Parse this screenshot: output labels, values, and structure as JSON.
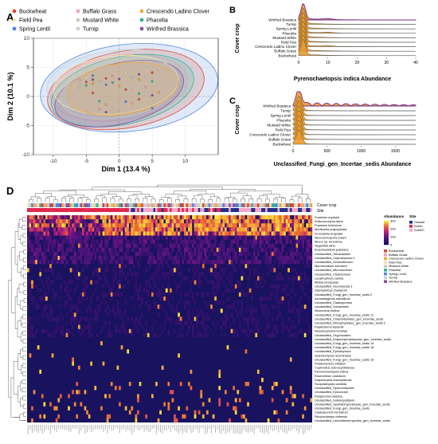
{
  "panels": {
    "a": "A",
    "b": "B",
    "c": "C",
    "d": "D"
  },
  "colors": {
    "Buckwheat": "#e0492f",
    "Buffalo Grass": "#f4a3b2",
    "Crescendo Ladino Clover": "#f0a93c",
    "Field Pea": "#f3e7b0",
    "Mustard White": "#c9c9b8",
    "Phacelia": "#2fb59a",
    "Spring Lentil": "#4f86e0",
    "Turnip": "#c8d0d6",
    "Winfred Brassica": "#8a4fa3",
    "site_Oswald": "#1f2f8a",
    "site_Kelvin": "#e0264d",
    "site_SoREC": "#f5a6c8",
    "ridge_fill": "#e89a2e",
    "ridge_top": "#7a2d8c"
  },
  "legend_a": [
    {
      "label": "Buckwheat",
      "key": "Buckwheat"
    },
    {
      "label": "Buffalo Grass",
      "key": "Buffalo Grass"
    },
    {
      "label": "Crescendo Ladino Clover",
      "key": "Crescendo Ladino Clover"
    },
    {
      "label": "Field Pea",
      "key": "Field Pea"
    },
    {
      "label": "Mustard White",
      "key": "Mustard White"
    },
    {
      "label": "Phacelia",
      "key": "Phacelia"
    },
    {
      "label": "Spring Lentil",
      "key": "Spring Lentil"
    },
    {
      "label": "Turnip",
      "key": "Turnip"
    },
    {
      "label": "Winfred Brassica",
      "key": "Winfred Brassica"
    }
  ],
  "chart_data": [
    {
      "type": "scatter",
      "panel": "A",
      "xlabel": "Dim 1 (13.4 %)",
      "ylabel": "Dim 2 (10.1 %)",
      "xlim": [
        -13,
        15
      ],
      "ylim": [
        -10,
        10
      ],
      "xticks": [
        "-10",
        "-5",
        "0",
        "5",
        "10"
      ],
      "yticks": [
        "-10",
        "-5",
        "0",
        "5",
        "10"
      ],
      "grid": true,
      "legend": "top",
      "ellipse_type": "confidence ellipses per cover crop",
      "series": [
        {
          "name": "Buckwheat",
          "points": [
            [
              -5,
              2.5
            ],
            [
              -2,
              3.1
            ],
            [
              1,
              1.2
            ],
            [
              5,
              4.1
            ],
            [
              3,
              -0.5
            ],
            [
              -4,
              0.6
            ]
          ]
        },
        {
          "name": "Buffalo Grass",
          "points": [
            [
              -6,
              2.8
            ],
            [
              -1,
              3.5
            ],
            [
              2,
              -1.2
            ],
            [
              -3,
              -2.1
            ],
            [
              4,
              1.6
            ]
          ]
        },
        {
          "name": "Crescendo Ladino Clover",
          "points": [
            [
              -4,
              2.2
            ],
            [
              0,
              1.8
            ],
            [
              3,
              2.9
            ],
            [
              -2,
              -1.4
            ],
            [
              6,
              0.7
            ]
          ]
        },
        {
          "name": "Field Pea",
          "points": [
            [
              -5,
              3.2
            ],
            [
              1,
              4.0
            ],
            [
              -2,
              0.9
            ],
            [
              4,
              -1.6
            ]
          ]
        },
        {
          "name": "Mustard White",
          "points": [
            [
              -3,
              2.7
            ],
            [
              2,
              3.3
            ],
            [
              -6,
              1.5
            ],
            [
              0,
              -2.4
            ]
          ]
        },
        {
          "name": "Phacelia",
          "points": [
            [
              -5,
              1.9
            ],
            [
              -1,
              2.4
            ],
            [
              3,
              0.5
            ],
            [
              5,
              2.6
            ],
            [
              -3,
              -0.8
            ]
          ]
        },
        {
          "name": "Spring Lentil",
          "points": [
            [
              -4,
              3.6
            ],
            [
              1,
              -0.9
            ],
            [
              -2,
              2.0
            ],
            [
              5,
              -2.0
            ]
          ]
        },
        {
          "name": "Turnip",
          "points": [
            [
              -6,
              2.1
            ],
            [
              2,
              1.5
            ],
            [
              -1,
              -1.8
            ],
            [
              4,
              3.4
            ]
          ]
        },
        {
          "name": "Winfred Brassica",
          "points": [
            [
              -4,
              2.9
            ],
            [
              0,
              3.0
            ],
            [
              3,
              3.8
            ],
            [
              -2,
              -2.7
            ],
            [
              5,
              0.2
            ]
          ]
        }
      ]
    },
    {
      "type": "area",
      "panel": "B",
      "xlabel": "Pyrenochaetopsis indica Abundance",
      "ylabel": "Cover crop",
      "xlim": [
        0,
        40
      ],
      "xticks": [
        "0",
        "10",
        "20",
        "30",
        "40"
      ],
      "categories": [
        "Winfred Brassica",
        "Turnip",
        "Spring Lentil",
        "Phacelia",
        "Mustard White",
        "Field Pea",
        "Crescendo Ladino Clover",
        "Buffalo Grass",
        "Buckwheat"
      ],
      "peak_values": [
        3,
        3,
        3,
        3,
        3,
        3,
        3,
        3,
        3
      ]
    },
    {
      "type": "area",
      "panel": "C",
      "xlabel": "Unclassified_Fungi_gen_Incertae_sedis Abundance",
      "ylabel": "Cover crop",
      "xlim": [
        0,
        1800
      ],
      "xticks": [
        "0",
        "500",
        "1000",
        "1500"
      ],
      "categories": [
        "Winfred Brassica",
        "Turnip",
        "Spring Lentil",
        "Phacelia",
        "Mustard White",
        "Field Pea",
        "Crescendo Ladino Clover",
        "Buffalo Grass",
        "Buckwheat"
      ],
      "peak_values": [
        60,
        60,
        60,
        60,
        60,
        60,
        60,
        60,
        60
      ]
    },
    {
      "type": "heatmap",
      "panel": "D",
      "annotation_rows": [
        "Cover crop",
        "Site"
      ],
      "columns": 140,
      "colorbar_title": "Abundance",
      "colorbar_ticks": [
        "300",
        "200",
        "100",
        "0"
      ],
      "legend_cover_crop": [
        "Buckwheat",
        "Buffalo Grass",
        "Crescendo Ladino Clover",
        "Field Pea",
        "Mustard White",
        "Phacelia",
        "Spring Lentil",
        "Turnip",
        "Winfred Brassica"
      ],
      "legend_site_title": "Site",
      "legend_site": [
        "Oswald",
        "Kelvin",
        "SoREC"
      ],
      "rows": [
        "Fusarium equiseti",
        "Solicoccozyma aeria",
        "Fusarium tricinctum",
        "Mortierella polycephala",
        "Truncatella angulata",
        "Neocosmospora solani",
        "Mucor sp. tenerrima",
        "Vagarnitia alba",
        "Aureobasidium pullulans",
        "Unclassified_Tetracladium",
        "Unclassified_Cephalophora 1",
        "Unclassified_Schizothecium",
        "Myrmecridium schulzeri",
        "Unclassified_Microdochium",
        "Unclassified_Chaetomium",
        "Lecythophora canina",
        "Miskia incrassata",
        "Unclassified_Ascomycota 1",
        "Stachybotrys chartarum",
        "Unclassified_Fungi_gen_Incertae_sedis 2",
        "Acrostalagmus luteoalbus",
        "Unclassified_Cladosporium",
        "Unclassified_Sordariales",
        "Neonectria mutica",
        "Unclassified_Fungi_gen_Incertae_sedis 11",
        "Unclassified_Chaetothyriales_gen_Incertae_sedis",
        "Unclassified_Rhizophydiales_gen_Incertae_sedis 2",
        "Papiliotrema laurentii",
        "Neosetophoma lunariae",
        "Unclassified_Gryphonates",
        "Unclassified_Didymosphaeriaceae_gen_Incertae_sedis",
        "Unclassified_Fungi_gen_Incertae_sedis 14",
        "Unclassified_Fungi_gen_Incertae_sedis 18",
        "Unclassified_Pyxidiophora",
        "Spizellomyces acuminatus",
        "Unclassified_Fungi_gen_Incertae_sedis 16",
        "Phialemonium inflatum",
        "Coprinellus sclerocystidiosus",
        "Pyrenochaetopsis indica",
        "Exserohilum rostratum",
        "Didymocyrtis brachylaenae",
        "Scopulariopsis candida",
        "Unclassified_Sporormiaceae",
        "Unclassified_Epicoccum",
        "Paraphoma radicina",
        "Unclassified_Subulicystidium",
        "Unclassified_Sporidiomycetaceae_gen_Incertae_sedis",
        "Unclassified_Fungi_gen_Incertae_sedis",
        "Cladosporium herbarum",
        "Fibulochlamys chilensis",
        "Unclassified_Laboulbeniomycetes_gen_Incertae_sedis"
      ]
    }
  ]
}
